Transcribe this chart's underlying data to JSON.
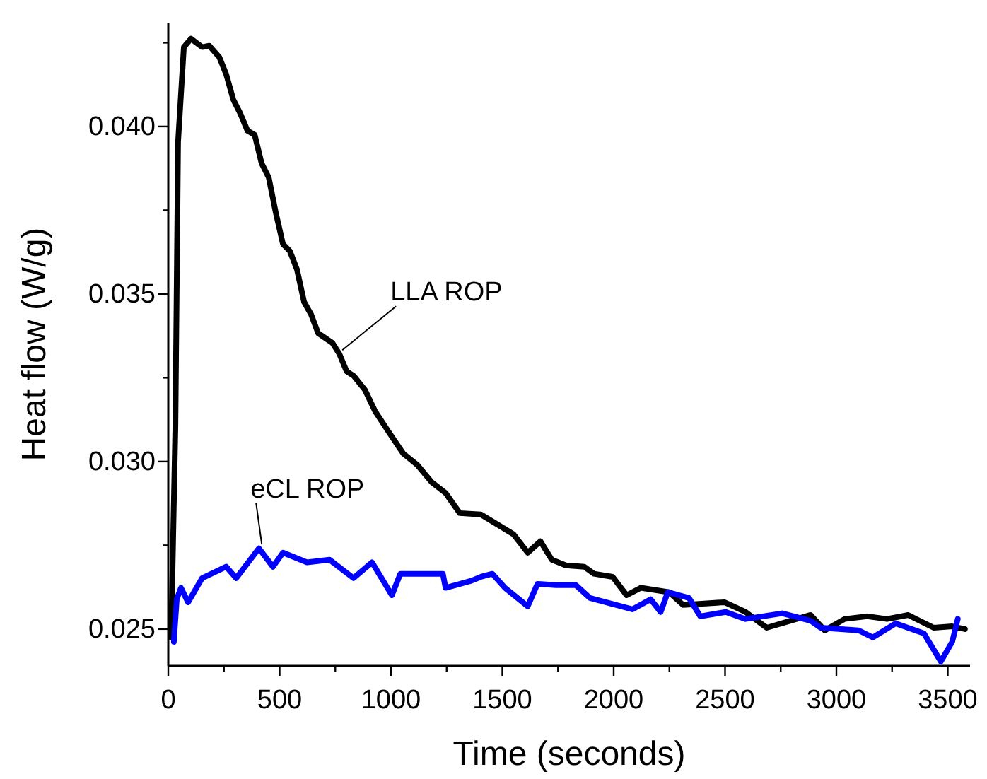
{
  "chart_data": {
    "type": "line",
    "xlabel": "Time (seconds)",
    "ylabel": "Heat flow (W/g)",
    "xlim": [
      0,
      3600
    ],
    "ylim": [
      0.0239,
      0.0431
    ],
    "xticks": [
      0,
      {
        "value": 250,
        "label": null
      },
      500,
      {
        "value": 750,
        "label": null
      },
      1000,
      {
        "value": 1250,
        "label": null
      },
      1500,
      {
        "value": 1750,
        "label": null
      },
      2000,
      {
        "value": 2250,
        "label": null
      },
      2500,
      {
        "value": 2750,
        "label": null
      },
      3000,
      {
        "value": 3250,
        "label": null
      },
      3500
    ],
    "yticks": [
      0.025,
      {
        "value": 0.0275,
        "label": null
      },
      {
        "value": 0.03,
        "label": "0.030"
      },
      {
        "value": 0.0325,
        "label": null
      },
      0.035,
      {
        "value": 0.0375,
        "label": null
      },
      {
        "value": 0.04,
        "label": "0.040"
      },
      {
        "value": 0.0425,
        "label": null
      }
    ],
    "grid": false,
    "legend": false,
    "marker": "none",
    "line_style": "solid",
    "series": [
      {
        "name": "LLA ROP",
        "color": "#000000",
        "x": [
          13,
          32,
          44,
          70,
          102,
          152,
          184,
          229,
          260,
          292,
          324,
          356,
          388,
          419,
          451,
          483,
          515,
          546,
          578,
          610,
          642,
          673,
          737,
          769,
          801,
          832,
          883,
          928,
          991,
          1055,
          1118,
          1182,
          1245,
          1309,
          1404,
          1550,
          1614,
          1671,
          1722,
          1785,
          1868,
          1912,
          1995,
          2058,
          2122,
          2249,
          2312,
          2497,
          2592,
          2687,
          2884,
          2948,
          3037,
          3138,
          3227,
          3322,
          3437,
          3520,
          3577
        ],
        "values": [
          0.02475,
          0.03108,
          0.03954,
          0.04237,
          0.04262,
          0.04237,
          0.04241,
          0.04207,
          0.04156,
          0.0408,
          0.04038,
          0.03987,
          0.03975,
          0.0389,
          0.03848,
          0.03742,
          0.03649,
          0.03628,
          0.03573,
          0.03476,
          0.03438,
          0.03383,
          0.03354,
          0.0332,
          0.03269,
          0.03256,
          0.03214,
          0.03151,
          0.03087,
          0.03024,
          0.0299,
          0.02939,
          0.02906,
          0.02846,
          0.02842,
          0.02783,
          0.02728,
          0.02762,
          0.02707,
          0.0269,
          0.02686,
          0.02665,
          0.02656,
          0.02601,
          0.02623,
          0.0261,
          0.02572,
          0.0258,
          0.02551,
          0.02504,
          0.02542,
          0.02496,
          0.0253,
          0.02538,
          0.0253,
          0.02542,
          0.02504,
          0.02508,
          0.025
        ]
      },
      {
        "name": "eCL ROP",
        "color": "#0000ff",
        "x": [
          25,
          38,
          57,
          89,
          152,
          260,
          305,
          407,
          470,
          515,
          623,
          724,
          832,
          915,
          1004,
          1042,
          1233,
          1245,
          1360,
          1404,
          1455,
          1512,
          1614,
          1658,
          1741,
          1830,
          1893,
          2084,
          2166,
          2211,
          2243,
          2338,
          2389,
          2503,
          2592,
          2757,
          2884,
          2929,
          3100,
          3164,
          3266,
          3393,
          3469,
          3520,
          3545
        ],
        "values": [
          0.02462,
          0.02589,
          0.02623,
          0.0258,
          0.02652,
          0.02686,
          0.02652,
          0.02741,
          0.02686,
          0.02728,
          0.02699,
          0.02707,
          0.02652,
          0.02699,
          0.02601,
          0.02665,
          0.02665,
          0.02623,
          0.02644,
          0.02656,
          0.02665,
          0.02623,
          0.02568,
          0.02635,
          0.02631,
          0.02631,
          0.02593,
          0.02559,
          0.02589,
          0.02551,
          0.0261,
          0.02593,
          0.02538,
          0.02551,
          0.0253,
          0.02547,
          0.02525,
          0.02504,
          0.02496,
          0.02475,
          0.02517,
          0.02487,
          0.02403,
          0.02462,
          0.0253
        ]
      }
    ]
  }
}
